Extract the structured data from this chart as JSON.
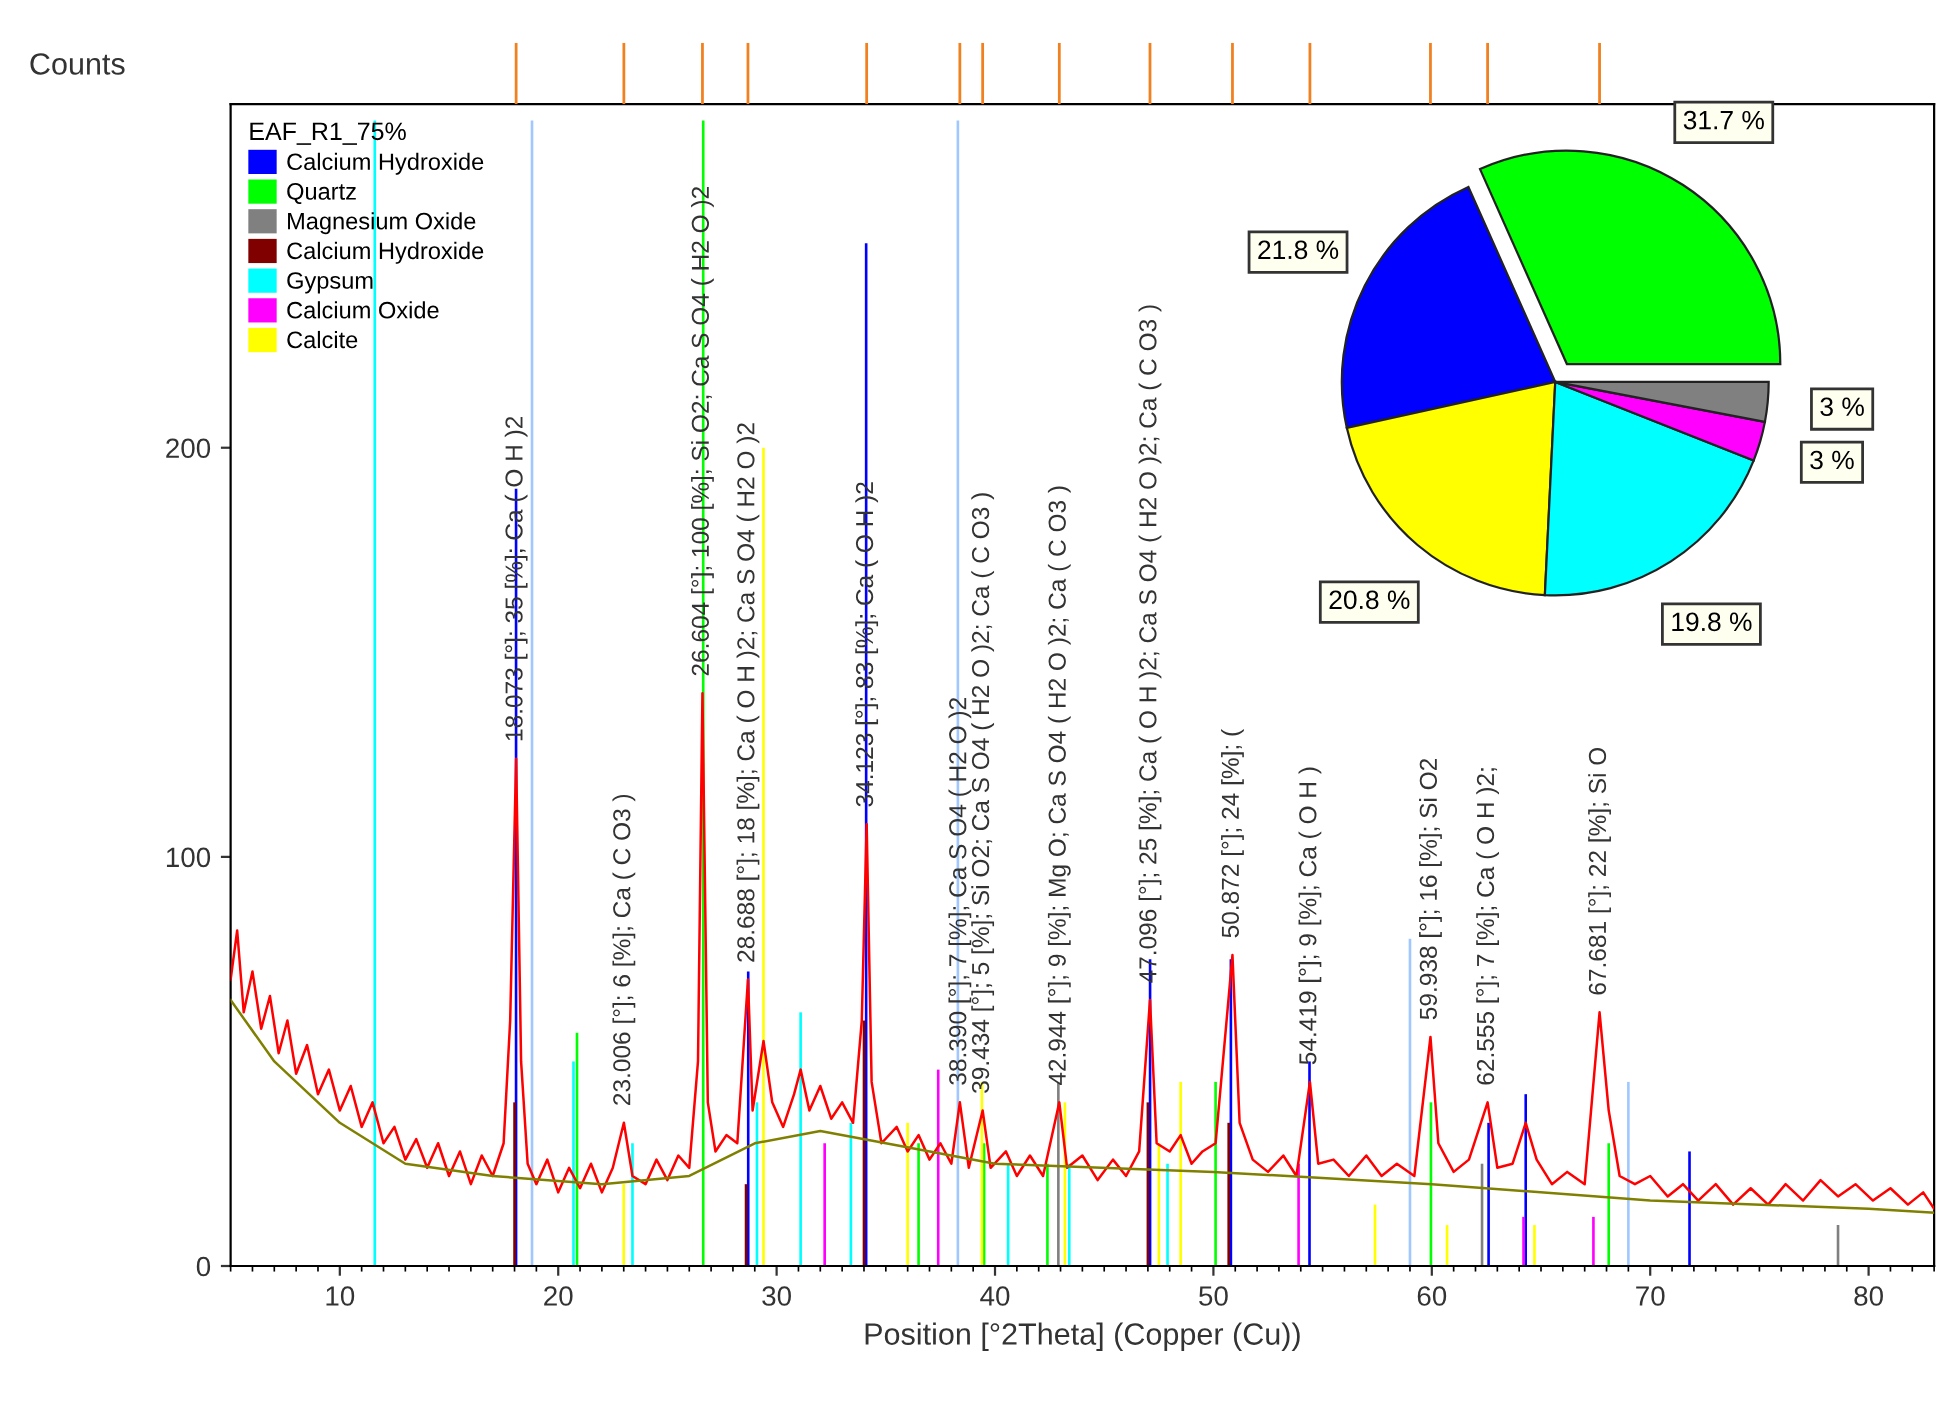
{
  "chart_data": [
    {
      "type": "line",
      "xlabel": "Position [°2Theta] (Copper (Cu))",
      "ylabel": "Counts",
      "legend_title": "EAF_R1_75%",
      "legend": "top left",
      "xlim": [
        5,
        83
      ],
      "xticks": [
        10,
        20,
        30,
        40,
        50,
        60,
        70,
        80
      ],
      "ylim": [
        0,
        284
      ],
      "yticks": [
        0,
        100,
        200
      ],
      "tick_labels": "xy",
      "grid": false,
      "series": [
        {
          "type": "bar",
          "name": "Calcium Hydroxide",
          "color": "#0000ff",
          "x": [
            18.07,
            28.7,
            34.1,
            47.1,
            50.8,
            54.4,
            62.6,
            64.3,
            71.8
          ],
          "values": [
            190,
            72,
            250,
            75,
            75,
            50,
            35,
            42,
            28
          ]
        },
        {
          "type": "bar",
          "name": "Quartz",
          "color": "#00ff00",
          "x": [
            20.86,
            26.64,
            36.5,
            39.5,
            42.4,
            50.1,
            59.96,
            68.1
          ],
          "values": [
            57,
            280,
            30,
            30,
            25,
            45,
            40,
            30
          ]
        },
        {
          "type": "bar",
          "name": "Magnesium Oxide",
          "color": "#808080",
          "x": [
            42.9,
            62.3,
            78.6
          ],
          "values": [
            45,
            25,
            10
          ]
        },
        {
          "type": "bar",
          "name": "Calcium Hydroxide",
          "color": "#800000",
          "x": [
            18.0,
            28.6,
            34.0,
            47.0,
            50.7
          ],
          "values": [
            40,
            20,
            60,
            40,
            35
          ]
        },
        {
          "type": "bar",
          "name": "Gypsum",
          "color": "#00ffff",
          "x": [
            11.6,
            20.7,
            23.4,
            29.1,
            31.1,
            33.4,
            40.6,
            43.4,
            47.9
          ],
          "values": [
            280,
            50,
            30,
            40,
            62,
            35,
            25,
            25,
            25
          ]
        },
        {
          "type": "bar",
          "name": "Calcium Oxide",
          "color": "#ff00ff",
          "x": [
            32.2,
            37.4,
            53.9,
            64.2,
            67.4
          ],
          "values": [
            30,
            48,
            25,
            12,
            12
          ]
        },
        {
          "type": "bar",
          "name": "Calcite",
          "color": "#ffff00",
          "x": [
            23.0,
            29.4,
            36.0,
            39.4,
            43.2,
            47.5,
            48.5,
            57.4,
            60.7,
            64.7
          ],
          "values": [
            20,
            200,
            35,
            45,
            40,
            30,
            45,
            15,
            10,
            10
          ]
        },
        {
          "type": "bar",
          "color": "#a0c8ff",
          "x": [
            18.8,
            38.3,
            59.0,
            69.0
          ],
          "values": [
            280,
            280,
            80,
            45
          ]
        },
        {
          "type": "line",
          "color": "#ff0000",
          "x": [
            5.0,
            5.3,
            5.6,
            6.0,
            6.4,
            6.8,
            7.2,
            7.6,
            8.0,
            8.5,
            9.0,
            9.5,
            10.0,
            10.5,
            11.0,
            11.5,
            12.0,
            12.5,
            13.0,
            13.5,
            14.0,
            14.5,
            15.0,
            15.5,
            16.0,
            16.5,
            17.0,
            17.5,
            17.8,
            18.073,
            18.3,
            18.6,
            19.0,
            19.5,
            20.0,
            20.5,
            21.0,
            21.5,
            22.0,
            22.5,
            23.006,
            23.4,
            24.0,
            24.5,
            25.0,
            25.5,
            26.0,
            26.4,
            26.604,
            26.85,
            27.2,
            27.7,
            28.2,
            28.688,
            28.9,
            29.4,
            29.8,
            30.3,
            30.8,
            31.1,
            31.5,
            32.0,
            32.5,
            33.0,
            33.5,
            33.9,
            34.123,
            34.35,
            34.8,
            35.5,
            36.0,
            36.5,
            37.0,
            37.5,
            38.0,
            38.39,
            38.8,
            39.434,
            39.8,
            40.5,
            41.0,
            41.6,
            42.2,
            42.944,
            43.3,
            44.0,
            44.7,
            45.4,
            46.0,
            46.6,
            47.096,
            47.4,
            48.0,
            48.5,
            49.0,
            49.5,
            50.1,
            50.872,
            51.2,
            51.8,
            52.5,
            53.2,
            53.8,
            54.419,
            54.8,
            55.5,
            56.2,
            57.0,
            57.7,
            58.4,
            59.2,
            59.938,
            60.3,
            61.0,
            61.7,
            62.555,
            63.0,
            63.7,
            64.3,
            64.8,
            65.5,
            66.2,
            67.0,
            67.681,
            68.1,
            68.6,
            69.3,
            70.0,
            70.8,
            71.5,
            72.2,
            73.0,
            73.8,
            74.6,
            75.4,
            76.2,
            77.0,
            77.8,
            78.6,
            79.4,
            80.2,
            81.0,
            81.8,
            82.5,
            83.0
          ],
          "values": [
            70,
            82,
            62,
            72,
            58,
            66,
            52,
            60,
            47,
            54,
            42,
            48,
            38,
            44,
            34,
            40,
            30,
            34,
            26,
            31,
            24,
            30,
            22,
            28,
            20,
            27,
            22,
            30,
            60,
            124,
            50,
            25,
            20,
            26,
            18,
            24,
            19,
            25,
            18,
            24,
            35,
            22,
            20,
            26,
            21,
            27,
            24,
            50,
            140,
            40,
            28,
            32,
            30,
            70,
            38,
            55,
            40,
            34,
            42,
            48,
            38,
            44,
            36,
            40,
            35,
            60,
            108,
            45,
            30,
            34,
            28,
            32,
            26,
            30,
            25,
            40,
            24,
            38,
            24,
            28,
            22,
            27,
            22,
            40,
            24,
            27,
            21,
            26,
            22,
            28,
            65,
            30,
            28,
            32,
            25,
            28,
            30,
            76,
            35,
            26,
            23,
            27,
            22,
            45,
            25,
            26,
            22,
            27,
            22,
            25,
            22,
            56,
            30,
            23,
            26,
            40,
            24,
            25,
            35,
            26,
            20,
            23,
            20,
            62,
            38,
            22,
            20,
            22,
            17,
            20,
            16,
            20,
            15,
            19,
            15,
            20,
            16,
            21,
            17,
            20,
            16,
            19,
            15,
            18,
            14
          ]
        },
        {
          "type": "line",
          "color": "#808000",
          "x": [
            5,
            7,
            10,
            13,
            17,
            22,
            26,
            29,
            32,
            35,
            40,
            50,
            60,
            70,
            80,
            83
          ],
          "values": [
            65,
            50,
            35,
            25,
            22,
            20,
            22,
            30,
            33,
            30,
            25,
            23,
            20,
            16,
            14,
            13
          ]
        }
      ],
      "annotations": [
        {
          "text": "18.073 [°]; 35 [%]; Ca ( O H )2",
          "x": 18.073,
          "y": 124
        },
        {
          "text": "23.006 [°]; 6 [%]; Ca ( C O3 )",
          "x": 23.006,
          "y": 35
        },
        {
          "text": "26.604 [°]; 100 [%]; Si O2; Ca S O4 ( H2 O )2",
          "x": 26.604,
          "y": 140
        },
        {
          "text": "28.688 [°]; 18 [%]; Ca ( O H )2; Ca S O4 ( H2 O )2",
          "x": 28.688,
          "y": 70
        },
        {
          "text": "34.123 [°]; 83 [%]; Ca ( O H )2",
          "x": 34.123,
          "y": 108
        },
        {
          "text": "38.390 [°]; 7 [%]; Ca S O4 ( H2 O )2",
          "x": 38.39,
          "y": 40
        },
        {
          "text": "39.434 [°]; 5 [%]; Si O2; Ca S O4 ( H2 O )2; Ca ( C O3 )",
          "x": 39.434,
          "y": 38
        },
        {
          "text": "42.944 [°]; 9 [%]; Mg O; Ca S O4 ( H2 O )2; Ca ( C O3 )",
          "x": 42.944,
          "y": 40
        },
        {
          "text": "47.096 [°]; 25 [%]; Ca ( O H )2; Ca S O4 ( H2 O )2; Ca ( C O3 )",
          "x": 47.096,
          "y": 65
        },
        {
          "text": "50.872 [°]; 24 [%]; (",
          "x": 50.872,
          "y": 76
        },
        {
          "text": "54.419 [°]; 9 [%]; Ca ( O H )",
          "x": 54.419,
          "y": 45
        },
        {
          "text": "59.938 [°]; 16 [%]; Si O2",
          "x": 59.938,
          "y": 56
        },
        {
          "text": "62.555 [°]; 7 [%]; Ca ( O H )2;",
          "x": 62.555,
          "y": 40
        },
        {
          "text": "67.681 [°]; 22 [%]; Si O",
          "x": 67.681,
          "y": 62
        }
      ]
    },
    {
      "type": "pie",
      "categories": [
        null,
        null,
        null,
        null,
        null,
        null
      ],
      "values": [
        31.7,
        21.8,
        20.8,
        19.8,
        3,
        3
      ],
      "colors": [
        "#00ff00",
        "#0000ff",
        "#ffff00",
        "#00ffff",
        "#ff00ff",
        "#808080"
      ],
      "value_labels": [
        "31.7 %",
        "21.8 %",
        "20.8 %",
        "19.8 %",
        "3 %",
        "3 %"
      ]
    }
  ]
}
